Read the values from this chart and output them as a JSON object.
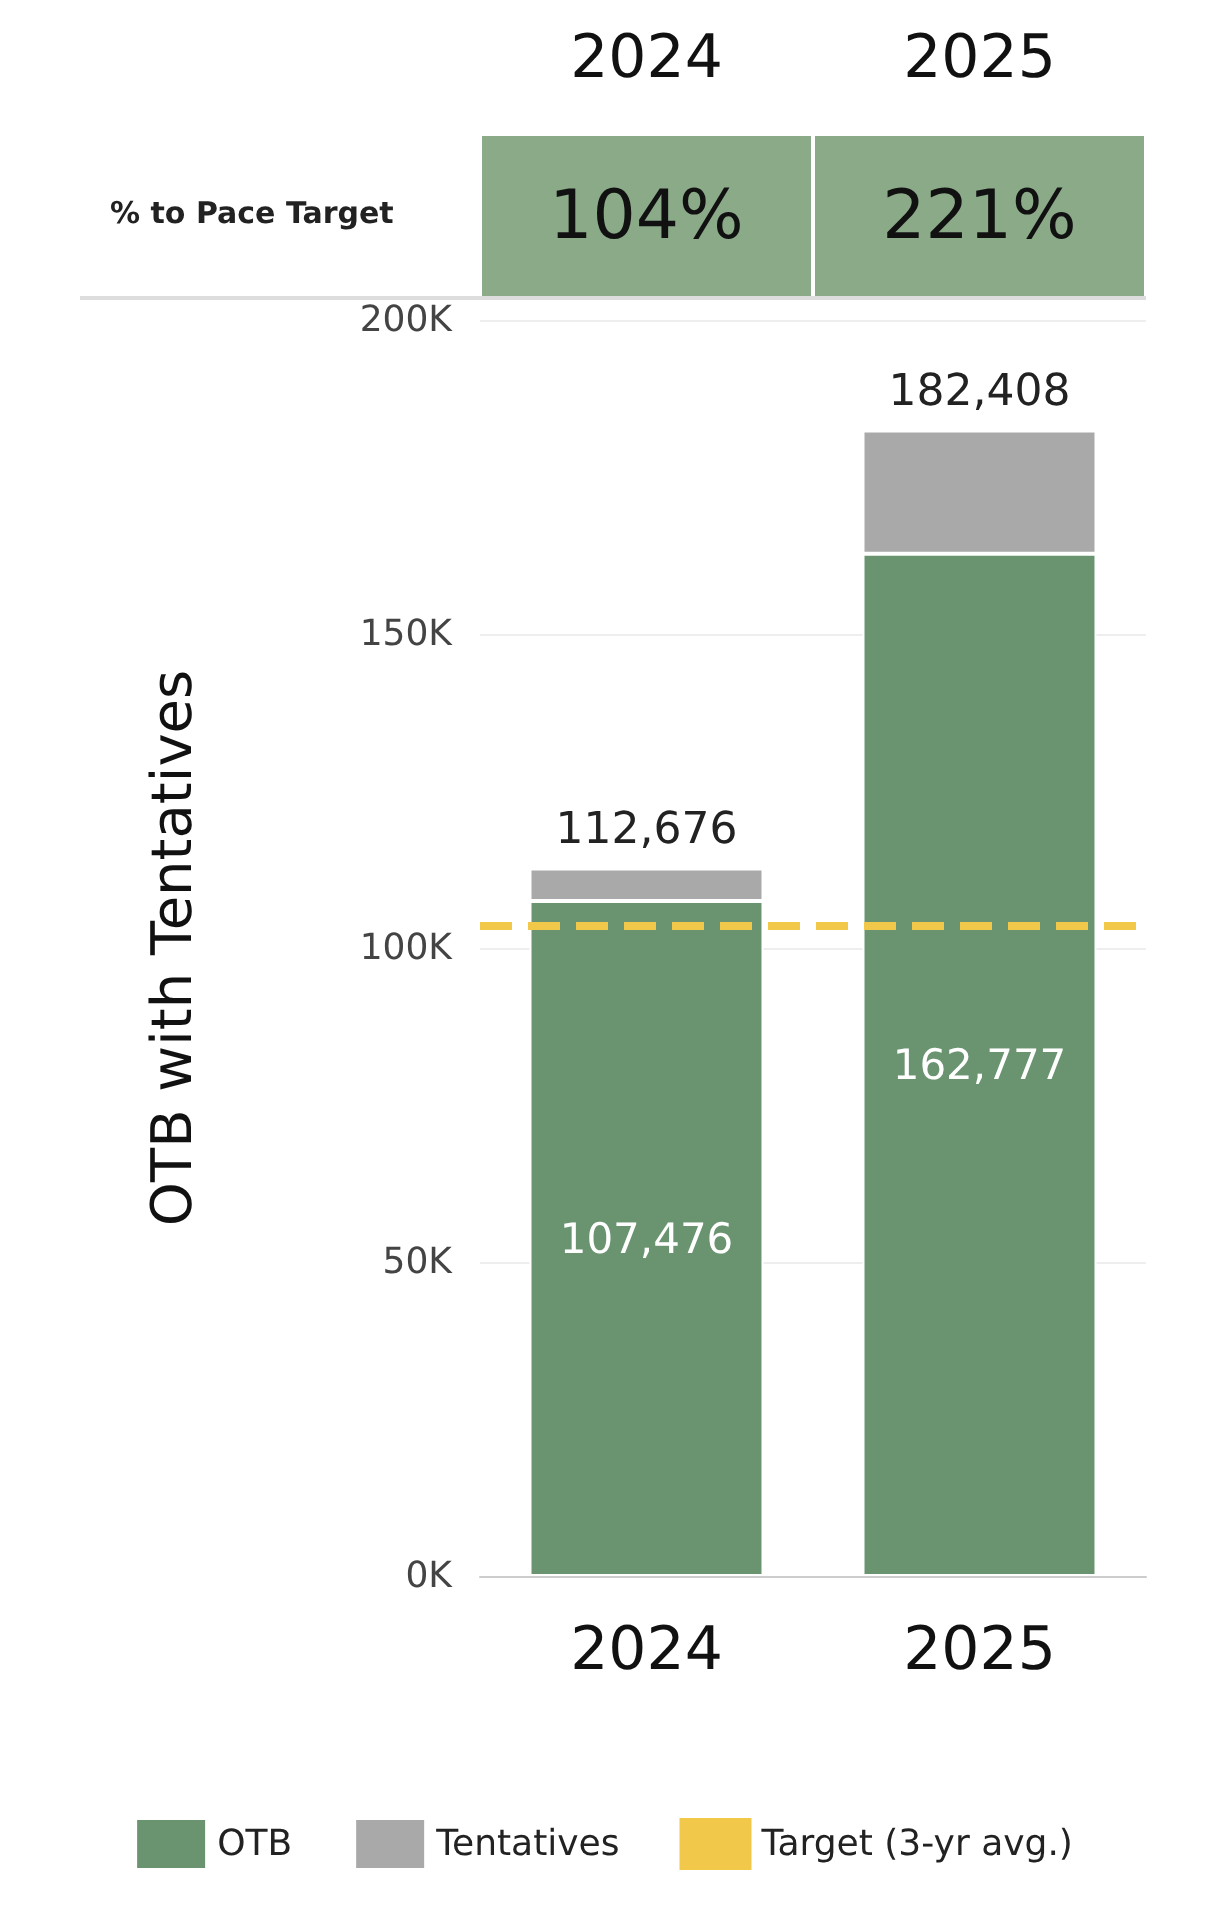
{
  "chart_data": {
    "type": "bar",
    "stacked": true,
    "ylabel": "OTB with Tentatives",
    "categories": [
      "2024",
      "2025"
    ],
    "series": [
      {
        "name": "OTB",
        "color": "#6a9470",
        "values": [
          107476,
          162777
        ],
        "value_labels": [
          "107,476",
          "162,777"
        ]
      },
      {
        "name": "Tentatives",
        "color": "#a9a9a9",
        "values": [
          5200,
          19631
        ]
      }
    ],
    "totals": [
      "112,676",
      "182,408"
    ],
    "ylim": [
      0,
      200000
    ],
    "yticks": [
      {
        "value": 0,
        "label": "0K"
      },
      {
        "value": 50000,
        "label": "50K"
      },
      {
        "value": 100000,
        "label": "100K"
      },
      {
        "value": 150000,
        "label": "150K"
      },
      {
        "value": 200000,
        "label": "200K"
      }
    ],
    "ref_lines": [
      {
        "axis": "y",
        "value": 103500,
        "label": "Target (3-yr avg.)",
        "color": "#f2c84b",
        "line_style": "dashed"
      }
    ],
    "annotations": [
      "% to Pace Target",
      "104%",
      "221%"
    ],
    "grid": "y",
    "legend": "bottom"
  }
}
